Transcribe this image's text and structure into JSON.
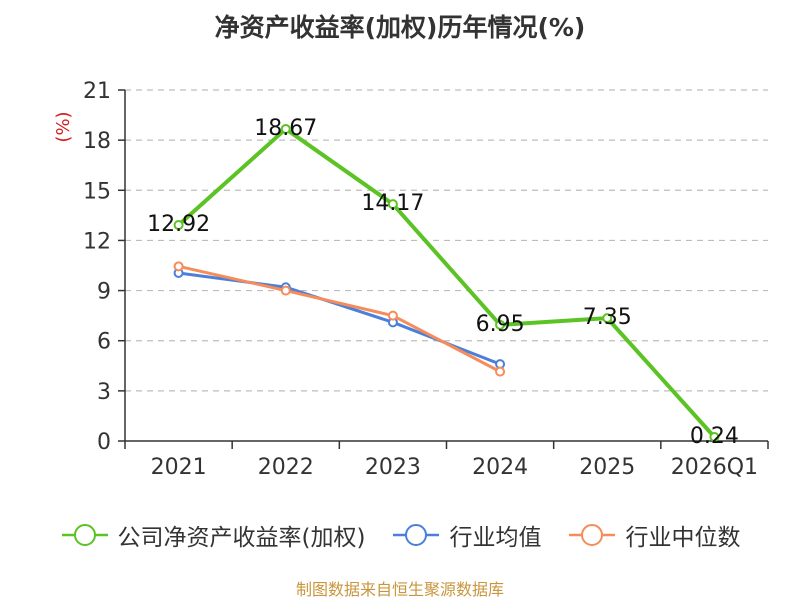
{
  "title": "净资产收益率(加权)历年情况(%)",
  "footer": "制图数据来自恒生聚源数据库",
  "chart_data": {
    "type": "line",
    "title": "净资产收益率(加权)历年情况(%)",
    "ylabel": "(%)",
    "xlabel": "",
    "ylim": [
      0,
      21
    ],
    "yticks": [
      0,
      3,
      6,
      9,
      12,
      15,
      18,
      21
    ],
    "grid": true,
    "legend_position": "bottom",
    "categories": [
      "2021",
      "2022",
      "2023",
      "2024",
      "2025",
      "2026Q1"
    ],
    "series": [
      {
        "name": "公司净资产收益率(加权)",
        "color": "#5bc323",
        "values": [
          12.92,
          18.67,
          14.17,
          6.95,
          7.35,
          0.24
        ],
        "labels": [
          "12.92",
          "18.67",
          "14.17",
          "6.95",
          "7.35",
          "0.24"
        ]
      },
      {
        "name": "行业均值",
        "color": "#4b7fd9",
        "values": [
          10.05,
          9.2,
          7.1,
          4.6,
          null,
          null
        ]
      },
      {
        "name": "行业中位数",
        "color": "#f58c5a",
        "values": [
          10.45,
          9.0,
          7.5,
          4.15,
          null,
          null
        ]
      }
    ]
  }
}
